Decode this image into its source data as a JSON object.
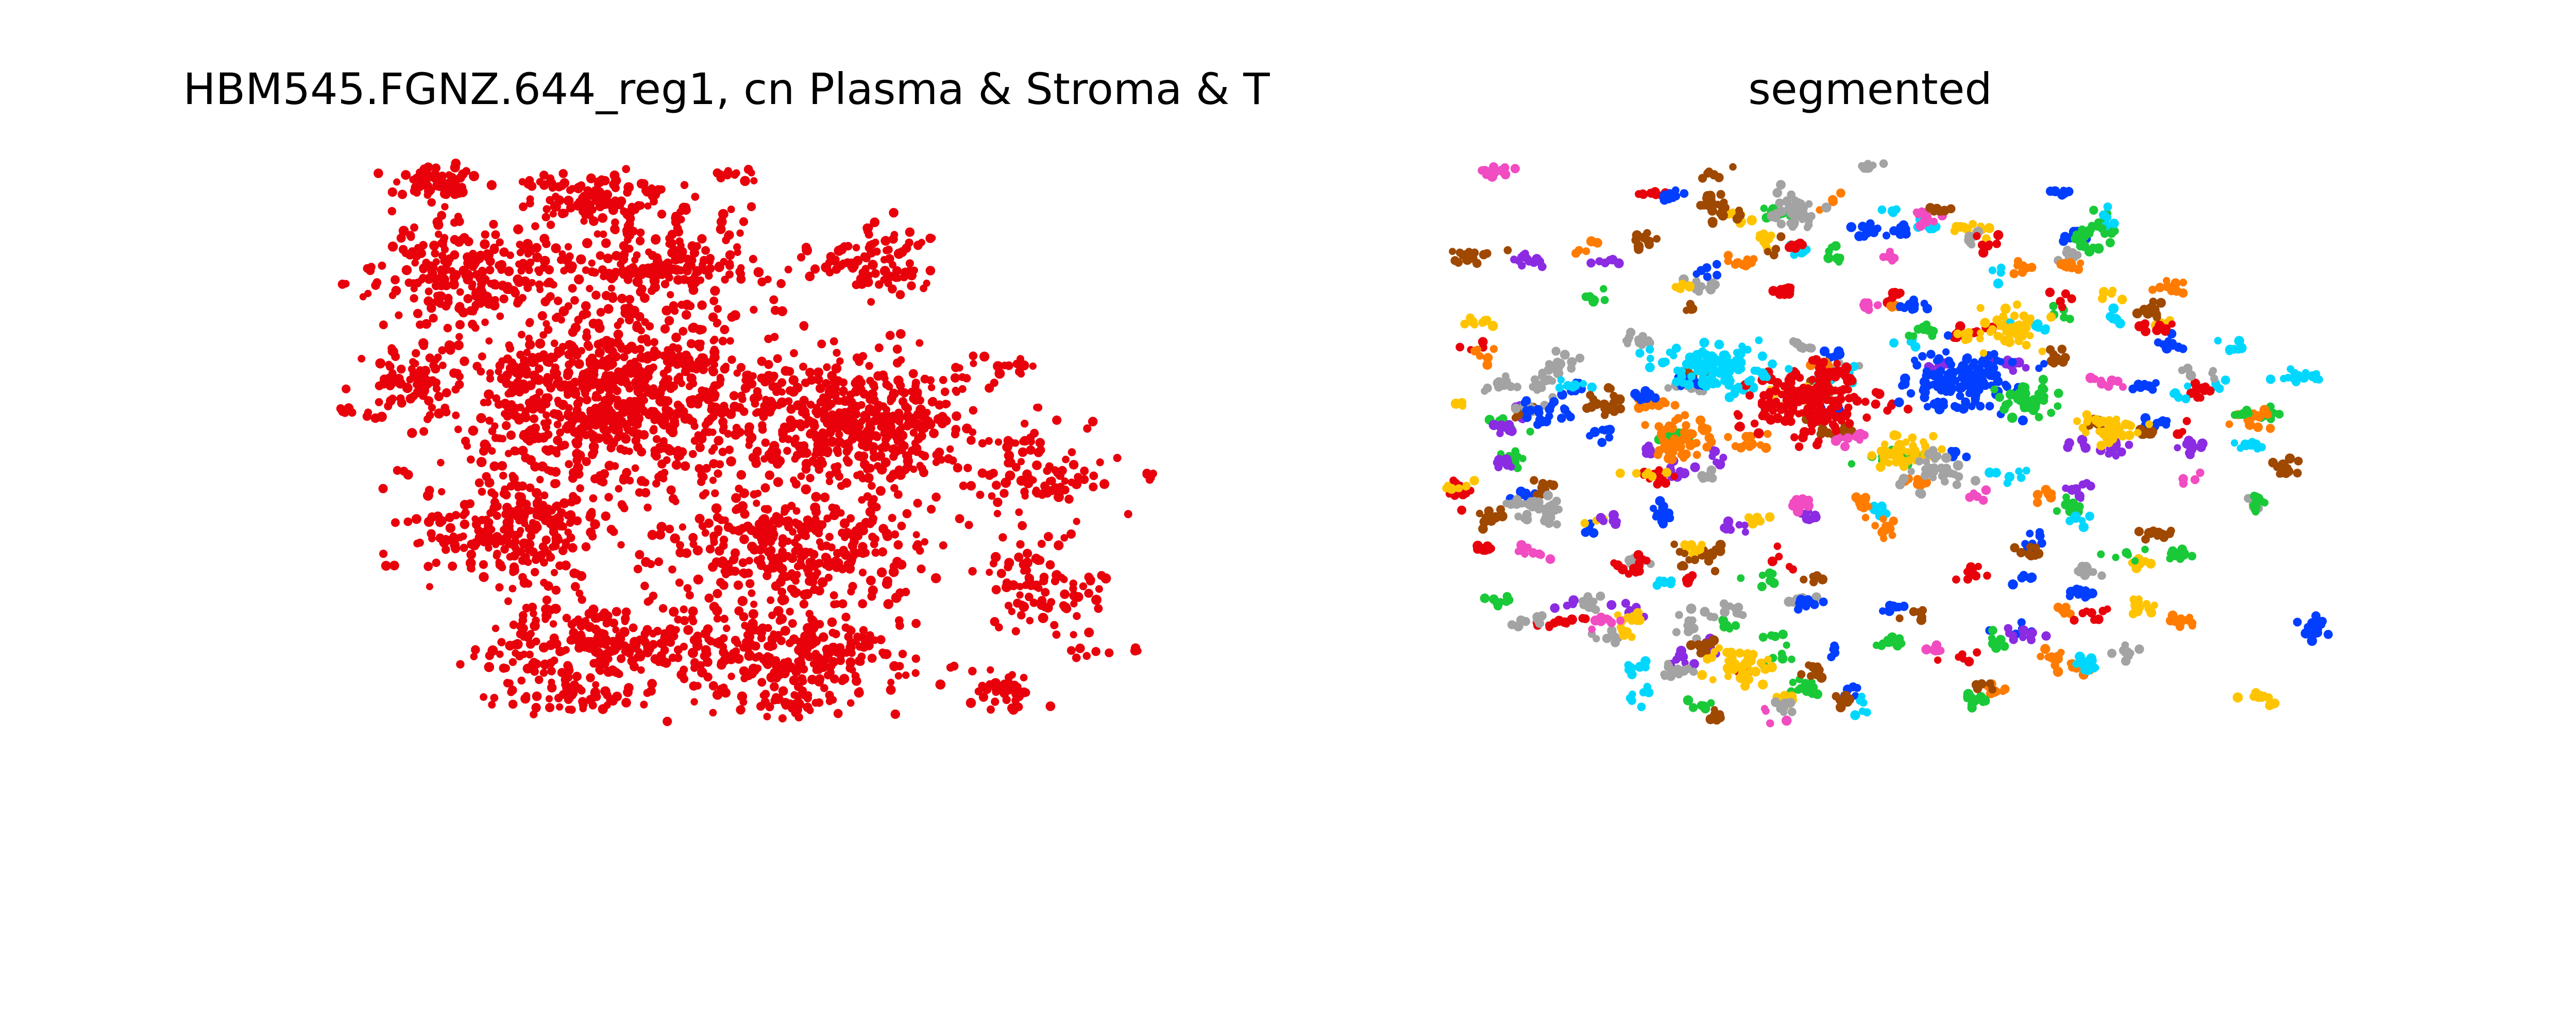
{
  "chart_data": [
    {
      "type": "scatter",
      "title": "HBM545.FGNZ.644_reg1, cn Plasma & Stroma & T",
      "xlabel": "",
      "ylabel": "",
      "axes": "off",
      "grid": false,
      "legend": "none",
      "xlim": [
        0,
        1000
      ],
      "ylim": [
        0,
        1000
      ],
      "point_color": "#e8000b",
      "series": [
        {
          "color": "#e8000b",
          "regions": [
            {
              "cx": 90,
              "cy": 40,
              "rx": 55,
              "ry": 28,
              "n": 60
            },
            {
              "cx": 300,
              "cy": 70,
              "rx": 90,
              "ry": 45,
              "n": 120
            },
            {
              "cx": 470,
              "cy": 30,
              "rx": 30,
              "ry": 10,
              "n": 12
            },
            {
              "cx": 130,
              "cy": 200,
              "rx": 120,
              "ry": 90,
              "n": 240
            },
            {
              "cx": 390,
              "cy": 190,
              "rx": 110,
              "ry": 80,
              "n": 200
            },
            {
              "cx": 670,
              "cy": 180,
              "rx": 70,
              "ry": 55,
              "n": 90
            },
            {
              "cx": 60,
              "cy": 400,
              "rx": 50,
              "ry": 60,
              "n": 60
            },
            {
              "cx": 330,
              "cy": 430,
              "rx": 210,
              "ry": 150,
              "n": 900
            },
            {
              "cx": 650,
              "cy": 470,
              "rx": 140,
              "ry": 110,
              "n": 450
            },
            {
              "cx": 880,
              "cy": 560,
              "rx": 70,
              "ry": 70,
              "n": 90
            },
            {
              "cx": 200,
              "cy": 660,
              "rx": 120,
              "ry": 80,
              "n": 250
            },
            {
              "cx": 560,
              "cy": 690,
              "rx": 150,
              "ry": 100,
              "n": 320
            },
            {
              "cx": 880,
              "cy": 760,
              "rx": 70,
              "ry": 80,
              "n": 90
            },
            {
              "cx": 300,
              "cy": 860,
              "rx": 140,
              "ry": 70,
              "n": 240
            },
            {
              "cx": 560,
              "cy": 880,
              "rx": 150,
              "ry": 70,
              "n": 260
            },
            {
              "cx": 550,
              "cy": 970,
              "rx": 60,
              "ry": 20,
              "n": 40
            },
            {
              "cx": 830,
              "cy": 950,
              "rx": 50,
              "ry": 30,
              "n": 40
            },
            {
              "cx": 260,
              "cy": 960,
              "rx": 90,
              "ry": 25,
              "n": 50
            },
            {
              "cx": 840,
              "cy": 370,
              "rx": 40,
              "ry": 20,
              "n": 14
            },
            {
              "cx": 1020,
              "cy": 560,
              "rx": 12,
              "ry": 8,
              "n": 5
            },
            {
              "cx": 1010,
              "cy": 870,
              "rx": 8,
              "ry": 6,
              "n": 3
            },
            {
              "cx": 940,
              "cy": 880,
              "rx": 30,
              "ry": 10,
              "n": 6
            },
            {
              "cx": -20,
              "cy": 450,
              "rx": 20,
              "ry": 15,
              "n": 6
            }
          ]
        }
      ]
    },
    {
      "type": "scatter",
      "title": "segmented",
      "xlabel": "",
      "ylabel": "",
      "axes": "off",
      "grid": false,
      "legend": "none",
      "xlim": [
        0,
        1000
      ],
      "ylim": [
        0,
        1000
      ],
      "palette": [
        "#e8000b",
        "#023eff",
        "#1ac938",
        "#ff7c00",
        "#8b2be2",
        "#9f4800",
        "#f14cc1",
        "#a3a3a3",
        "#ffc400",
        "#00d7ff"
      ],
      "clusters": [
        {
          "cx": 440,
          "cy": 430,
          "rx": 80,
          "ry": 60,
          "n": 160,
          "color": "#e8000b"
        },
        {
          "cx": 640,
          "cy": 390,
          "rx": 70,
          "ry": 55,
          "n": 140,
          "color": "#023eff"
        },
        {
          "cx": 320,
          "cy": 370,
          "rx": 70,
          "ry": 40,
          "n": 110,
          "color": "#00d7ff"
        },
        {
          "cx": 430,
          "cy": 90,
          "rx": 30,
          "ry": 40,
          "n": 40,
          "color": "#a3a3a3"
        },
        {
          "cx": 280,
          "cy": 500,
          "rx": 40,
          "ry": 40,
          "n": 55,
          "color": "#ff7c00"
        },
        {
          "cx": 560,
          "cy": 520,
          "rx": 40,
          "ry": 30,
          "n": 40,
          "color": "#ffc400"
        },
        {
          "cx": 600,
          "cy": 560,
          "rx": 40,
          "ry": 30,
          "n": 35,
          "color": "#a3a3a3"
        },
        {
          "cx": 700,
          "cy": 300,
          "rx": 40,
          "ry": 40,
          "n": 40,
          "color": "#ffc400"
        },
        {
          "cx": 720,
          "cy": 430,
          "rx": 40,
          "ry": 30,
          "n": 40,
          "color": "#1ac938"
        },
        {
          "cx": 820,
          "cy": 480,
          "rx": 40,
          "ry": 30,
          "n": 30,
          "color": "#ffc400"
        },
        {
          "cx": 100,
          "cy": 620,
          "rx": 45,
          "ry": 20,
          "n": 30,
          "color": "#a3a3a3"
        },
        {
          "cx": 350,
          "cy": 900,
          "rx": 45,
          "ry": 30,
          "n": 40,
          "color": "#ffc400"
        },
        {
          "cx": 180,
          "cy": 430,
          "rx": 20,
          "ry": 25,
          "n": 20,
          "color": "#9f4800"
        },
        {
          "cx": 10,
          "cy": 170,
          "rx": 30,
          "ry": 15,
          "n": 20,
          "color": "#9f4800"
        },
        {
          "cx": 320,
          "cy": 80,
          "rx": 30,
          "ry": 25,
          "n": 25,
          "color": "#9f4800"
        },
        {
          "cx": 110,
          "cy": 450,
          "rx": 50,
          "ry": 25,
          "n": 20,
          "color": "#023eff"
        },
        {
          "cx": 1050,
          "cy": 550,
          "rx": 20,
          "ry": 20,
          "n": 15,
          "color": "#9f4800"
        },
        {
          "cx": 1090,
          "cy": 830,
          "rx": 25,
          "ry": 20,
          "n": 15,
          "color": "#023eff"
        },
        {
          "cx": 1070,
          "cy": 390,
          "rx": 40,
          "ry": 12,
          "n": 14,
          "color": "#00d7ff"
        },
        {
          "cx": 40,
          "cy": 20,
          "rx": 25,
          "ry": 10,
          "n": 14,
          "color": "#f14cc1"
        },
        {
          "cx": 520,
          "cy": 10,
          "rx": 25,
          "ry": 8,
          "n": 10,
          "color": "#a3a3a3"
        },
        {
          "cx": 800,
          "cy": 140,
          "rx": 25,
          "ry": 25,
          "n": 20,
          "color": "#1ac938"
        },
        {
          "cx": 1020,
          "cy": 960,
          "rx": 25,
          "ry": 15,
          "n": 12,
          "color": "#ffc400"
        },
        {
          "cx": 930,
          "cy": 510,
          "rx": 25,
          "ry": 20,
          "n": 14,
          "color": "#8b2be2"
        }
      ],
      "scatter_groups": 240
    }
  ]
}
